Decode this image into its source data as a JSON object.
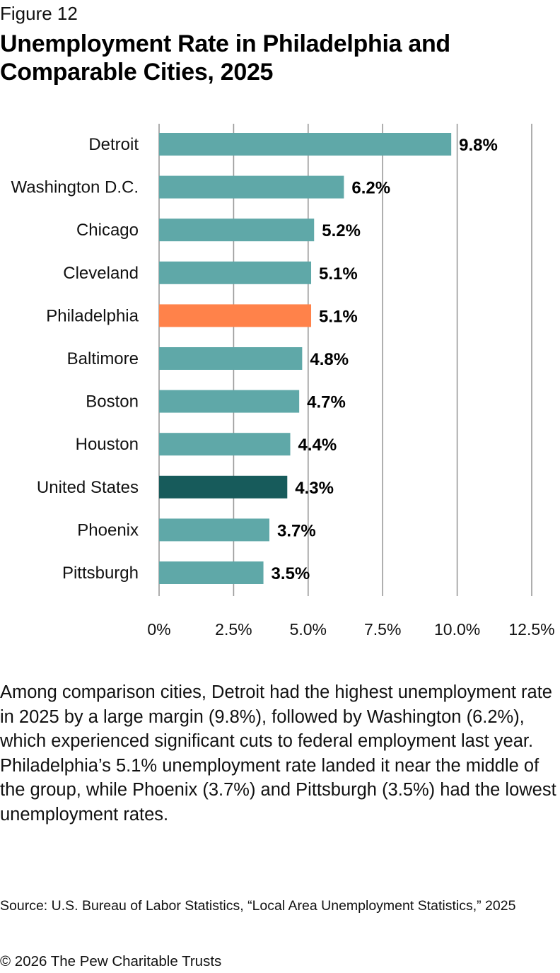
{
  "figure_label": "Figure 12",
  "title": "Unemployment Rate in Philadelphia and Comparable Cities, 2025",
  "colors": {
    "default_bar": "#5fa8a8",
    "philadelphia_bar": "#ff824a",
    "united_states_bar": "#175b5b",
    "gridline": "#9a9a9a",
    "text": "#111111"
  },
  "chart_data": {
    "type": "bar",
    "orientation": "horizontal",
    "categories": [
      "Detroit",
      "Washington D.C.",
      "Chicago",
      "Cleveland",
      "Philadelphia",
      "Baltimore",
      "Boston",
      "Houston",
      "United States",
      "Phoenix",
      "Pittsburgh"
    ],
    "values": [
      9.8,
      6.2,
      5.2,
      5.1,
      5.1,
      4.8,
      4.7,
      4.4,
      4.3,
      3.7,
      3.5
    ],
    "value_labels": [
      "9.8%",
      "6.2%",
      "5.2%",
      "5.1%",
      "5.1%",
      "4.8%",
      "4.7%",
      "4.4%",
      "4.3%",
      "3.7%",
      "3.5%"
    ],
    "bar_color_keys": [
      "default_bar",
      "default_bar",
      "default_bar",
      "default_bar",
      "philadelphia_bar",
      "default_bar",
      "default_bar",
      "default_bar",
      "united_states_bar",
      "default_bar",
      "default_bar"
    ],
    "xlim": [
      0,
      12.5
    ],
    "xticks": [
      0,
      2.5,
      5.0,
      7.5,
      10.0,
      12.5
    ],
    "xtick_labels": [
      "0%",
      "2.5%",
      "5.0%",
      "7.5%",
      "10.0%",
      "12.5%"
    ],
    "grid": true,
    "xlabel": "",
    "ylabel": ""
  },
  "description": "Among comparison cities, Detroit had the highest unemployment rate in 2025 by a large margin (9.8%), followed by Washington (6.2%), which experienced significant cuts to federal employment last year. Philadelphia’s 5.1% unemployment rate landed it near the middle of the group, while Phoenix (3.7%) and Pittsburgh (3.5%) had the lowest unemployment rates.",
  "source": "Source: U.S. Bureau of Labor Statistics, “Local Area Unemployment Statistics,” 2025",
  "copyright": "© 2026 The Pew Charitable Trusts"
}
